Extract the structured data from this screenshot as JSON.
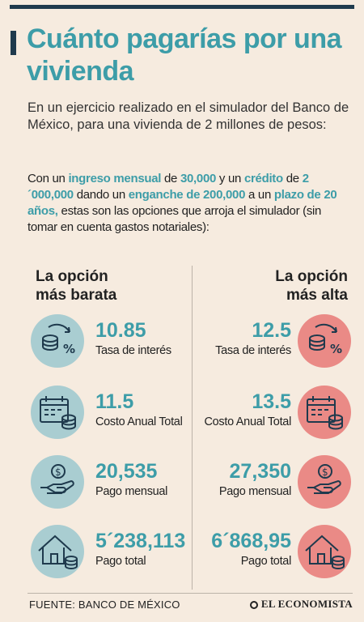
{
  "title": "Cuánto pagarías por una vivienda",
  "intro": "En un ejercicio realizado en el simulador del Banco de México, para una vivienda de 2 millones de pesos:",
  "params": {
    "p1": "Con un ",
    "h1": "ingreso mensual",
    "p2": " de ",
    "h2": "30,000",
    "p3": " y un ",
    "h3": "crédito",
    "p4": " de ",
    "h4": "2´000,000",
    "p5": " dando un ",
    "h5": "enganche de 200,000",
    "p6": " a un ",
    "h6": "plazo de 20 años,",
    "p7": " estas son las opciones que arroja el simulador (sin tomar en cuenta gastos notariales):"
  },
  "options": {
    "cheap": {
      "heading_line1": "La opción",
      "heading_line2": "más barata",
      "rows": [
        {
          "value": "10.85",
          "label": "Tasa de interés",
          "icon": "coins-percent-icon"
        },
        {
          "value": "11.5",
          "label": "Costo Anual Total",
          "icon": "calendar-coins-icon"
        },
        {
          "value": "20,535",
          "label": "Pago mensual",
          "icon": "hand-coin-icon"
        },
        {
          "value": "5´238,113",
          "label": "Pago total",
          "icon": "house-coins-icon"
        }
      ]
    },
    "high": {
      "heading_line1": "La opción",
      "heading_line2": "más alta",
      "rows": [
        {
          "value": "12.5",
          "label": "Tasa de interés",
          "icon": "coins-percent-icon"
        },
        {
          "value": "13.5",
          "label": "Costo Anual Total",
          "icon": "calendar-coins-icon"
        },
        {
          "value": "27,350",
          "label": "Pago mensual",
          "icon": "hand-coin-icon"
        },
        {
          "value": "6´868,95",
          "label": "Pago total",
          "icon": "house-coins-icon"
        }
      ]
    }
  },
  "colors": {
    "accent": "#3d9da8",
    "cheap_circle": "#a9cdd1",
    "high_circle": "#ea8a86",
    "background": "#f6ebdf"
  },
  "footer": {
    "source": "FUENTE: BANCO DE MÉXICO",
    "brand": "EL ECONOMISTA"
  }
}
